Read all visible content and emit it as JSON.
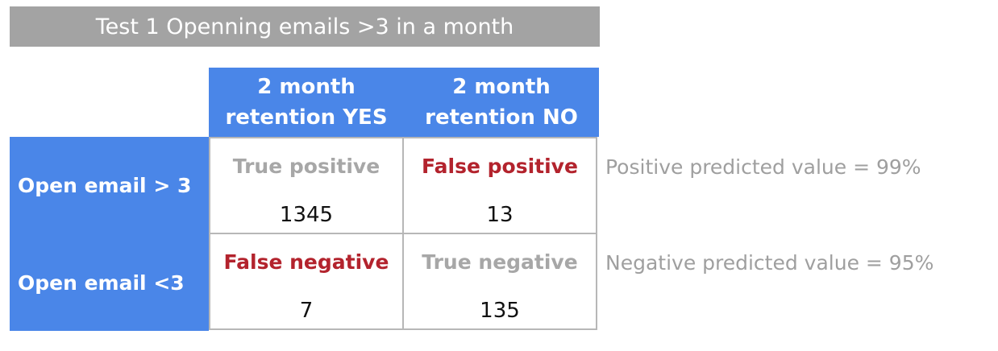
{
  "title": "Test 1 Openning emails >3 in a month",
  "columns": {
    "yes": [
      "2 month",
      "retention YES"
    ],
    "no": [
      "2 month",
      "retention NO"
    ]
  },
  "rows": {
    "first": "Open email > 3",
    "second": "Open email <3"
  },
  "cells": {
    "true_positive": {
      "label": "True positive",
      "value": "1345"
    },
    "false_positive": {
      "label": "False positive",
      "value": "13"
    },
    "false_negative": {
      "label": "False negative",
      "value": "7"
    },
    "true_negative": {
      "label": "True negative",
      "value": "135"
    }
  },
  "notes": {
    "ppv": "Positive predicted value = 99%",
    "npv": "Negative predicted value = 95%"
  },
  "colors": {
    "header_blue": "#4a86e8",
    "title_grey": "#a3a3a3",
    "label_grey": "#a7a7a7",
    "label_red": "#b3232d"
  }
}
